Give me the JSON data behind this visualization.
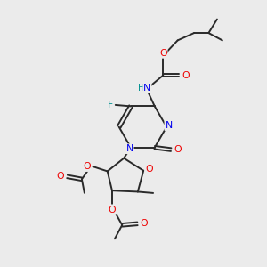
{
  "bg_color": "#ebebeb",
  "bond_color": "#2a2a2a",
  "atom_colors": {
    "N": "#0000ee",
    "O": "#ee0000",
    "F": "#009090",
    "H": "#009090",
    "C": "#2a2a2a"
  },
  "figsize": [
    3.0,
    3.0
  ],
  "dpi": 100
}
